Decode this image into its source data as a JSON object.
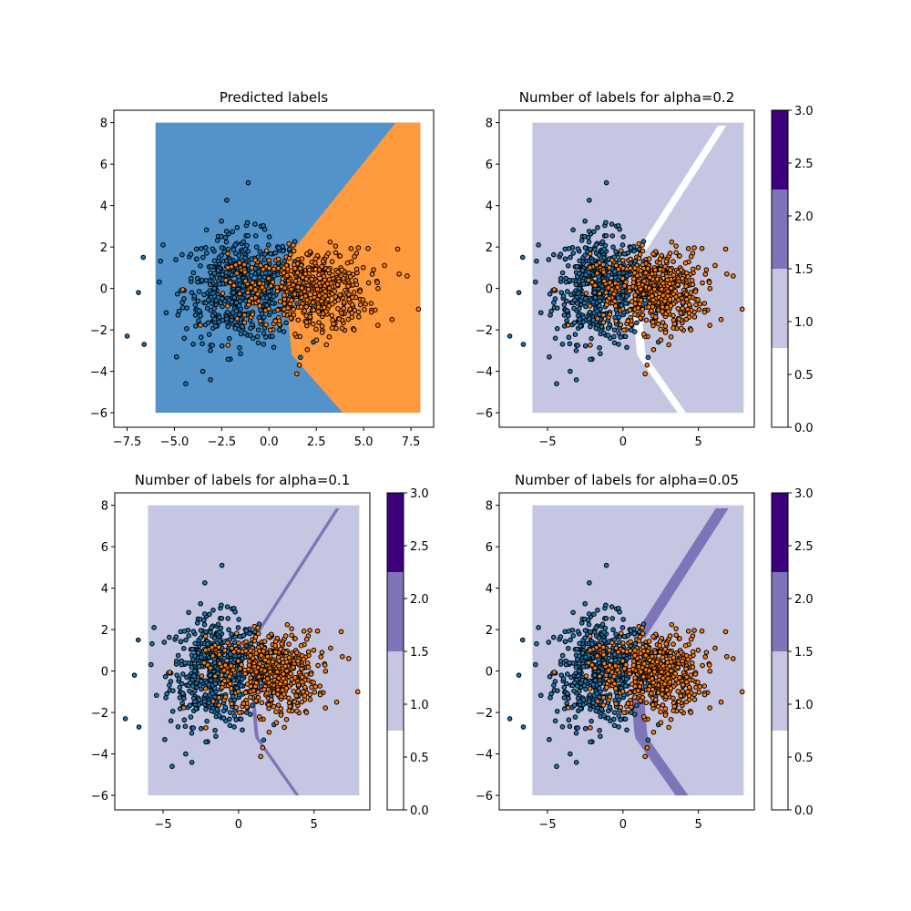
{
  "colors": {
    "class0": "#1f77b4",
    "class1": "#ff7f0e",
    "region0": "#5493c9",
    "region1": "#ff9a3f",
    "count0": "#ffffff",
    "count1": "#c5c6e1",
    "count2": "#7e75b8",
    "count3": "#3f007d",
    "marker_edge": "#000000"
  },
  "chart_data": [
    {
      "type": "scatter",
      "title": "Predicted labels",
      "xlabel": "",
      "ylabel": "",
      "xlim": [
        -8.2,
        8.7
      ],
      "ylim": [
        -6.7,
        8.6
      ],
      "xticks": [
        -7.5,
        -5.0,
        -2.5,
        0.0,
        2.5,
        5.0,
        7.5
      ],
      "xtick_labels": [
        "−7.5",
        "−5.0",
        "−2.5",
        "0.0",
        "2.5",
        "5.0",
        "7.5"
      ],
      "yticks": [
        -6,
        -4,
        -2,
        0,
        2,
        4,
        6,
        8
      ],
      "ytick_labels": [
        "−6",
        "−4",
        "−2",
        "0",
        "2",
        "4",
        "6",
        "8"
      ],
      "grid": false,
      "background": "predicted class regions over the grid x∈[-6,8], y∈[-6,8]",
      "decision_boundary": {
        "x": [
          3.9,
          1.2,
          0.7,
          6.7
        ],
        "y": [
          -6,
          -3.2,
          1.2,
          8
        ]
      },
      "series": [
        {
          "name": "",
          "color": "class0",
          "points": "class 0 cloud centred near (-1.5, 0)"
        },
        {
          "name": "",
          "color": "class1",
          "points": "class 1 cloud centred near (2.5, 0)"
        }
      ]
    },
    {
      "type": "heatmap",
      "title": "Number of labels for alpha=0.2",
      "xlim": [
        -8.2,
        8.7
      ],
      "ylim": [
        -6.7,
        8.6
      ],
      "xticks": [
        -5,
        0,
        5
      ],
      "xtick_labels": [
        "−5",
        "0",
        "5"
      ],
      "yticks": [
        -6,
        -4,
        -2,
        0,
        2,
        4,
        6,
        8
      ],
      "ytick_labels": [
        "−6",
        "−4",
        "−2",
        "0",
        "2",
        "4",
        "6",
        "8"
      ],
      "band_levels": 0,
      "band_width": 0.28,
      "colorbar": {
        "ticks": [
          "0.0",
          "0.5",
          "1.0",
          "1.5",
          "2.0",
          "2.5",
          "3.0"
        ],
        "range": [
          0,
          3
        ],
        "levels": [
          0,
          0.75,
          1.5,
          2.25,
          3.0
        ]
      }
    },
    {
      "type": "heatmap",
      "title": "Number of labels for alpha=0.1",
      "xlim": [
        -8.2,
        8.7
      ],
      "ylim": [
        -6.7,
        8.6
      ],
      "xticks": [
        -5,
        0,
        5
      ],
      "xtick_labels": [
        "−5",
        "0",
        "5"
      ],
      "yticks": [
        -6,
        -4,
        -2,
        0,
        2,
        4,
        6,
        8
      ],
      "ytick_labels": [
        "−6",
        "−4",
        "−2",
        "0",
        "2",
        "4",
        "6",
        "8"
      ],
      "band_levels": 2,
      "band_width": 0.12,
      "colorbar": {
        "ticks": [
          "0.0",
          "0.5",
          "1.0",
          "1.5",
          "2.0",
          "2.5",
          "3.0"
        ],
        "range": [
          0,
          3
        ],
        "levels": [
          0,
          0.75,
          1.5,
          2.25,
          3.0
        ]
      }
    },
    {
      "type": "heatmap",
      "title": "Number of labels for alpha=0.05",
      "xlim": [
        -8.2,
        8.7
      ],
      "ylim": [
        -6.7,
        8.6
      ],
      "xticks": [
        -5,
        0,
        5
      ],
      "xtick_labels": [
        "−5",
        "0",
        "5"
      ],
      "yticks": [
        -6,
        -4,
        -2,
        0,
        2,
        4,
        6,
        8
      ],
      "ytick_labels": [
        "−6",
        "−4",
        "−2",
        "0",
        "2",
        "4",
        "6",
        "8"
      ],
      "band_levels": 2,
      "band_width": 0.42,
      "colorbar": {
        "ticks": [
          "0.0",
          "0.5",
          "1.0",
          "1.5",
          "2.0",
          "2.5",
          "3.0"
        ],
        "range": [
          0,
          3
        ],
        "levels": [
          0,
          0.75,
          1.5,
          2.25,
          3.0
        ]
      }
    }
  ]
}
